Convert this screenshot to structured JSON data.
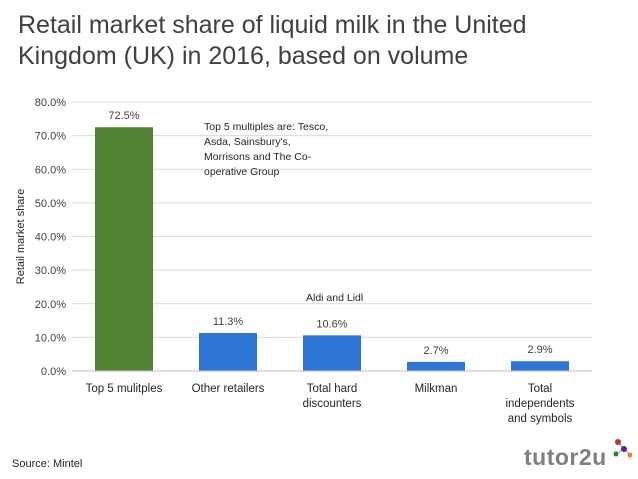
{
  "chart_data": {
    "type": "bar",
    "title": "Retail market share of liquid milk in the United Kingdom (UK) in 2016, based on volume",
    "ylabel": "Retail market share",
    "xlabel": "",
    "ylim": [
      0,
      80
    ],
    "yticks": [
      "0.0%",
      "10.0%",
      "20.0%",
      "30.0%",
      "40.0%",
      "50.0%",
      "60.0%",
      "70.0%",
      "80.0%"
    ],
    "ytick_values": [
      0,
      10,
      20,
      30,
      40,
      50,
      60,
      70,
      80
    ],
    "grid": true,
    "categories": [
      [
        "Top 5 mulitples"
      ],
      [
        "Other retailers"
      ],
      [
        "Total hard",
        "discounters"
      ],
      [
        "Milkman"
      ],
      [
        "Total",
        "independents",
        "and symbols"
      ]
    ],
    "values": [
      72.5,
      11.3,
      10.6,
      2.7,
      2.9
    ],
    "data_labels": [
      "72.5%",
      "11.3%",
      "10.6%",
      "2.7%",
      "2.9%"
    ],
    "bar_colors": [
      "#548235",
      "#2e75d6",
      "#2e75d6",
      "#2e75d6",
      "#2e75d6"
    ],
    "annotations": [
      {
        "lines": [
          "Top 5 multiples are: Tesco,",
          "Asda, Sainsbury's,",
          "Morrisons and The Co-",
          "operative Group"
        ],
        "near_category": 0
      },
      {
        "lines": [
          "Aldi and Lidl"
        ],
        "near_category": 2
      }
    ]
  },
  "source": "Source: Mintel",
  "logo": {
    "text": "tutor2u",
    "colors": [
      "#7f7f7f",
      "#c0392b",
      "#6a1b9a",
      "#2e7d32"
    ]
  }
}
